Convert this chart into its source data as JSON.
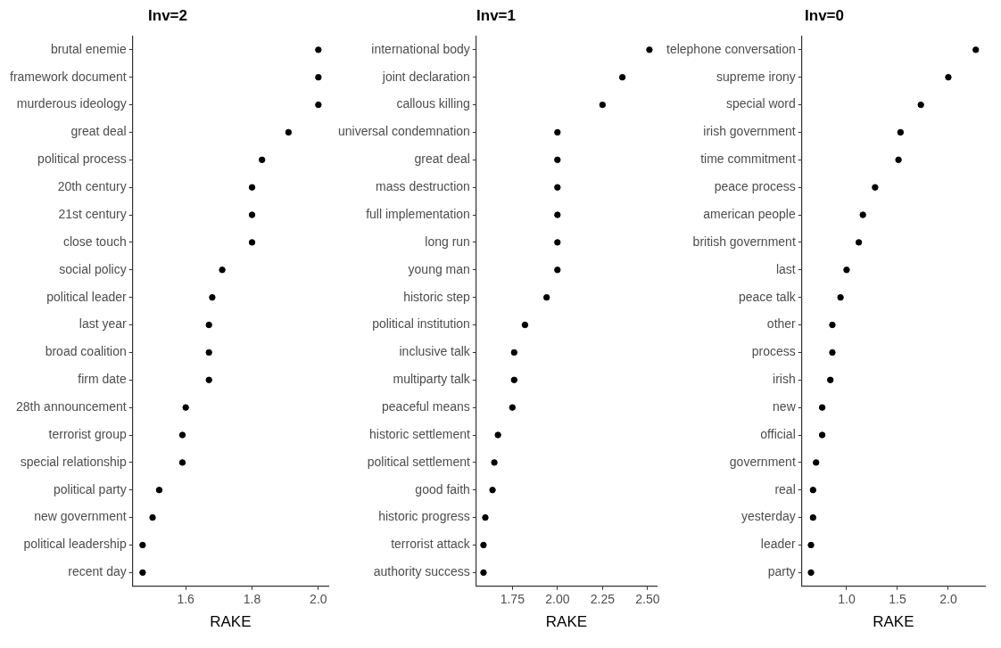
{
  "chart_data": [
    {
      "type": "scatter",
      "orientation": "horizontal",
      "title": "Inv=2",
      "xlabel": "RAKE",
      "categories": [
        "brutal enemie",
        "framework document",
        "murderous ideology",
        "great deal",
        "political process",
        "20th century",
        "21st century",
        "close touch",
        "social policy",
        "political leader",
        "last year",
        "broad coalition",
        "firm date",
        "28th announcement",
        "terrorist group",
        "special relationship",
        "political party",
        "new government",
        "political leadership",
        "recent day"
      ],
      "series": [
        {
          "color": "#000000",
          "values": [
            2.0,
            2.0,
            2.0,
            1.91,
            1.83,
            1.8,
            1.8,
            1.8,
            1.71,
            1.68,
            1.67,
            1.67,
            1.67,
            1.6,
            1.59,
            1.59,
            1.52,
            1.5,
            1.47,
            1.47
          ]
        }
      ],
      "xlim": [
        1.44,
        2.03
      ],
      "xticks": [
        {
          "value": 1.6,
          "label": "1.6"
        },
        {
          "value": 1.8,
          "label": "1.8"
        },
        {
          "value": 2.0,
          "label": "2.0"
        }
      ],
      "marker": "circle",
      "grid": false,
      "legend": false
    },
    {
      "type": "scatter",
      "orientation": "horizontal",
      "title": "Inv=1",
      "xlabel": "RAKE",
      "categories": [
        "international body",
        "joint declaration",
        "callous killing",
        "universal condemnation",
        "great deal",
        "mass destruction",
        "full implementation",
        "long run",
        "young man",
        "historic step",
        "political institution",
        "inclusive talk",
        "multiparty talk",
        "peaceful means",
        "historic settlement",
        "political settlement",
        "good faith",
        "historic progress",
        "terrorist attack",
        "authority success"
      ],
      "series": [
        {
          "color": "#000000",
          "values": [
            2.51,
            2.36,
            2.25,
            2.0,
            2.0,
            2.0,
            2.0,
            2.0,
            2.0,
            1.94,
            1.82,
            1.76,
            1.76,
            1.75,
            1.67,
            1.65,
            1.64,
            1.6,
            1.59,
            1.59
          ]
        }
      ],
      "xlim": [
        1.55,
        2.55
      ],
      "xticks": [
        {
          "value": 1.75,
          "label": "1.75"
        },
        {
          "value": 2.0,
          "label": "2.00"
        },
        {
          "value": 2.25,
          "label": "2.25"
        },
        {
          "value": 2.5,
          "label": "2.50"
        }
      ],
      "marker": "circle",
      "grid": false,
      "legend": false
    },
    {
      "type": "scatter",
      "orientation": "horizontal",
      "title": "Inv=0",
      "xlabel": "RAKE",
      "categories": [
        "telephone conversation",
        "supreme irony",
        "special word",
        "irish government",
        "time commitment",
        "peace process",
        "american people",
        "british government",
        "last",
        "peace talk",
        "other",
        "process",
        "irish",
        "new",
        "official",
        "government",
        "real",
        "yesterday",
        "leader",
        "party"
      ],
      "series": [
        {
          "color": "#000000",
          "values": [
            2.27,
            2.0,
            1.73,
            1.53,
            1.51,
            1.28,
            1.16,
            1.12,
            1.0,
            0.94,
            0.86,
            0.86,
            0.84,
            0.76,
            0.76,
            0.7,
            0.67,
            0.67,
            0.65,
            0.65
          ]
        }
      ],
      "xlim": [
        0.56,
        2.36
      ],
      "xticks": [
        {
          "value": 1.0,
          "label": "1.0"
        },
        {
          "value": 1.5,
          "label": "1.5"
        },
        {
          "value": 2.0,
          "label": "2.0"
        }
      ],
      "marker": "circle",
      "grid": false,
      "legend": false
    }
  ]
}
